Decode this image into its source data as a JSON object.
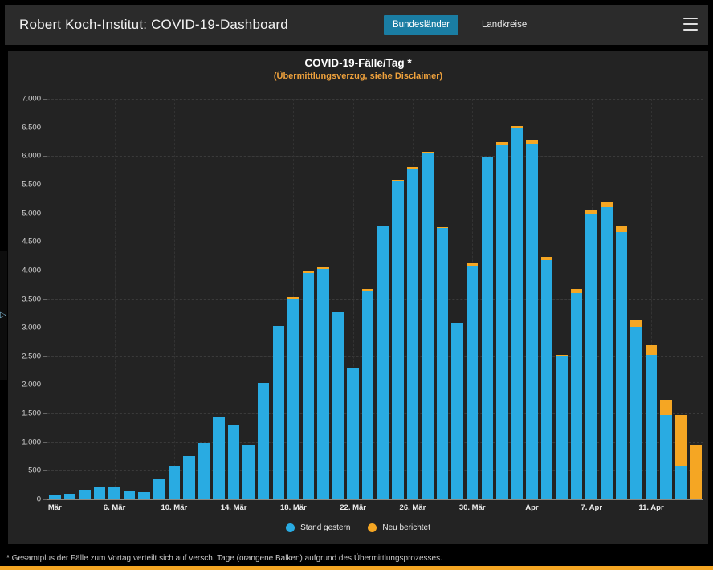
{
  "header": {
    "title": "Robert Koch-Institut: COVID-19-Dashboard",
    "tabs": [
      {
        "label": "Bundesländer",
        "active": true
      },
      {
        "label": "Landkreise",
        "active": false
      }
    ]
  },
  "chart": {
    "title": "COVID-19-Fälle/Tag *",
    "subtitle": "(Übermittlungsverzug, siehe Disclaimer)"
  },
  "chart_data": {
    "type": "bar",
    "stacked": true,
    "title": "COVID-19-Fälle/Tag *",
    "subtitle": "(Übermittlungsverzug, siehe Disclaimer)",
    "ylim": [
      0,
      7000
    ],
    "grid": "dashed",
    "legend_position": "bottom-center",
    "y_ticks": [
      {
        "value": 7000,
        "label": "7.000"
      },
      {
        "value": 6500,
        "label": "6.500"
      },
      {
        "value": 6000,
        "label": "6.000"
      },
      {
        "value": 5500,
        "label": "5.500"
      },
      {
        "value": 5000,
        "label": "5.000"
      },
      {
        "value": 4500,
        "label": "4.500"
      },
      {
        "value": 4000,
        "label": "4.000"
      },
      {
        "value": 3500,
        "label": "3.500"
      },
      {
        "value": 3000,
        "label": "3.000"
      },
      {
        "value": 2500,
        "label": "2.500"
      },
      {
        "value": 2000,
        "label": "2.000"
      },
      {
        "value": 1500,
        "label": "1.500"
      },
      {
        "value": 1000,
        "label": "1.000"
      },
      {
        "value": 500,
        "label": "500"
      },
      {
        "value": 0,
        "label": "0"
      }
    ],
    "x_ticks": [
      {
        "index": 0,
        "label": "Mär"
      },
      {
        "index": 4,
        "label": "6. Mär"
      },
      {
        "index": 8,
        "label": "10. Mär"
      },
      {
        "index": 12,
        "label": "14. Mär"
      },
      {
        "index": 16,
        "label": "18. Mär"
      },
      {
        "index": 20,
        "label": "22. Mär"
      },
      {
        "index": 24,
        "label": "26. Mär"
      },
      {
        "index": 28,
        "label": "30. Mär"
      },
      {
        "index": 32,
        "label": "Apr"
      },
      {
        "index": 36,
        "label": "7. Apr"
      },
      {
        "index": 40,
        "label": "11. Apr"
      }
    ],
    "series": [
      {
        "name": "Stand gestern",
        "color": "#29ABE2",
        "values": [
          65,
          100,
          170,
          205,
          205,
          155,
          120,
          355,
          575,
          755,
          985,
          1430,
          1300,
          950,
          2035,
          3030,
          3505,
          3955,
          4025,
          3270,
          2290,
          3650,
          4765,
          5550,
          5785,
          6050,
          4740,
          3090,
          4080,
          5990,
          6190,
          6490,
          6210,
          4180,
          2500,
          3600,
          4990,
          5100,
          4670,
          3010,
          2520,
          1470,
          570,
          0
        ]
      },
      {
        "name": "Neu berichtet",
        "color": "#F5A623",
        "values": [
          0,
          0,
          0,
          0,
          0,
          0,
          0,
          0,
          0,
          0,
          0,
          0,
          0,
          0,
          0,
          0,
          25,
          25,
          25,
          0,
          0,
          20,
          25,
          30,
          25,
          30,
          20,
          0,
          60,
          0,
          50,
          40,
          60,
          60,
          30,
          70,
          80,
          90,
          110,
          120,
          180,
          270,
          900,
          950
        ]
      }
    ]
  },
  "legend": [
    {
      "label": "Stand gestern",
      "color": "#29ABE2"
    },
    {
      "label": "Neu berichtet",
      "color": "#F5A623"
    }
  ],
  "footnote": "* Gesamtplus der Fälle zum Vortag verteilt sich auf versch. Tage (orangene Balken) aufgrund des Übermittlungsprozesses.",
  "colors": {
    "page_bg": "#000000",
    "header_bg": "#2B2B2B",
    "panel_bg": "#232323",
    "tab_active_bg": "#1A7DA3",
    "subtitle_orange": "#F0A23C",
    "bar_blue": "#29ABE2",
    "bar_orange": "#F5A623",
    "bottom_strip": "#F5A623",
    "expander_arrow": "#7FB8D4"
  }
}
